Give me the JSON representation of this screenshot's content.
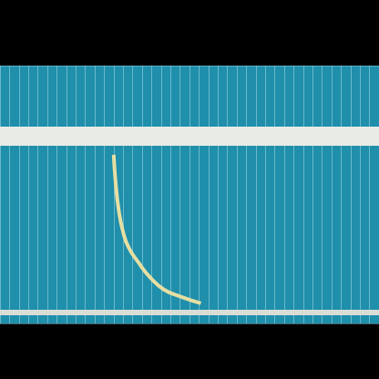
{
  "chart_data": {
    "type": "line",
    "x": [
      30,
      30.5,
      31.3,
      32.5,
      34,
      36.5,
      39.7,
      43.3,
      48,
      53
    ],
    "values": [
      65.4,
      54.8,
      44.2,
      35.3,
      29.3,
      23.7,
      17.7,
      13.1,
      10.2,
      7.8
    ],
    "color": "#e6dfa2",
    "marker": "none",
    "line_style": "solid",
    "xlim": [
      0,
      100
    ],
    "xticks": [
      0,
      2.5,
      5,
      7.5,
      10,
      12.5,
      15,
      17.5,
      20,
      22.5,
      25,
      27.5,
      30,
      32.5,
      35,
      37.5,
      40,
      42.5,
      45,
      47.5,
      50,
      52.5,
      55,
      57.5,
      60,
      62.5,
      65,
      67.5,
      70,
      72.5,
      75,
      77.5,
      80,
      82.5,
      85,
      87.5,
      90,
      92.5,
      95,
      97.5,
      100
    ],
    "ylim": [
      0,
      100
    ],
    "yticks": [
      0,
      100
    ],
    "grid": true,
    "tick_labels": false
  }
}
